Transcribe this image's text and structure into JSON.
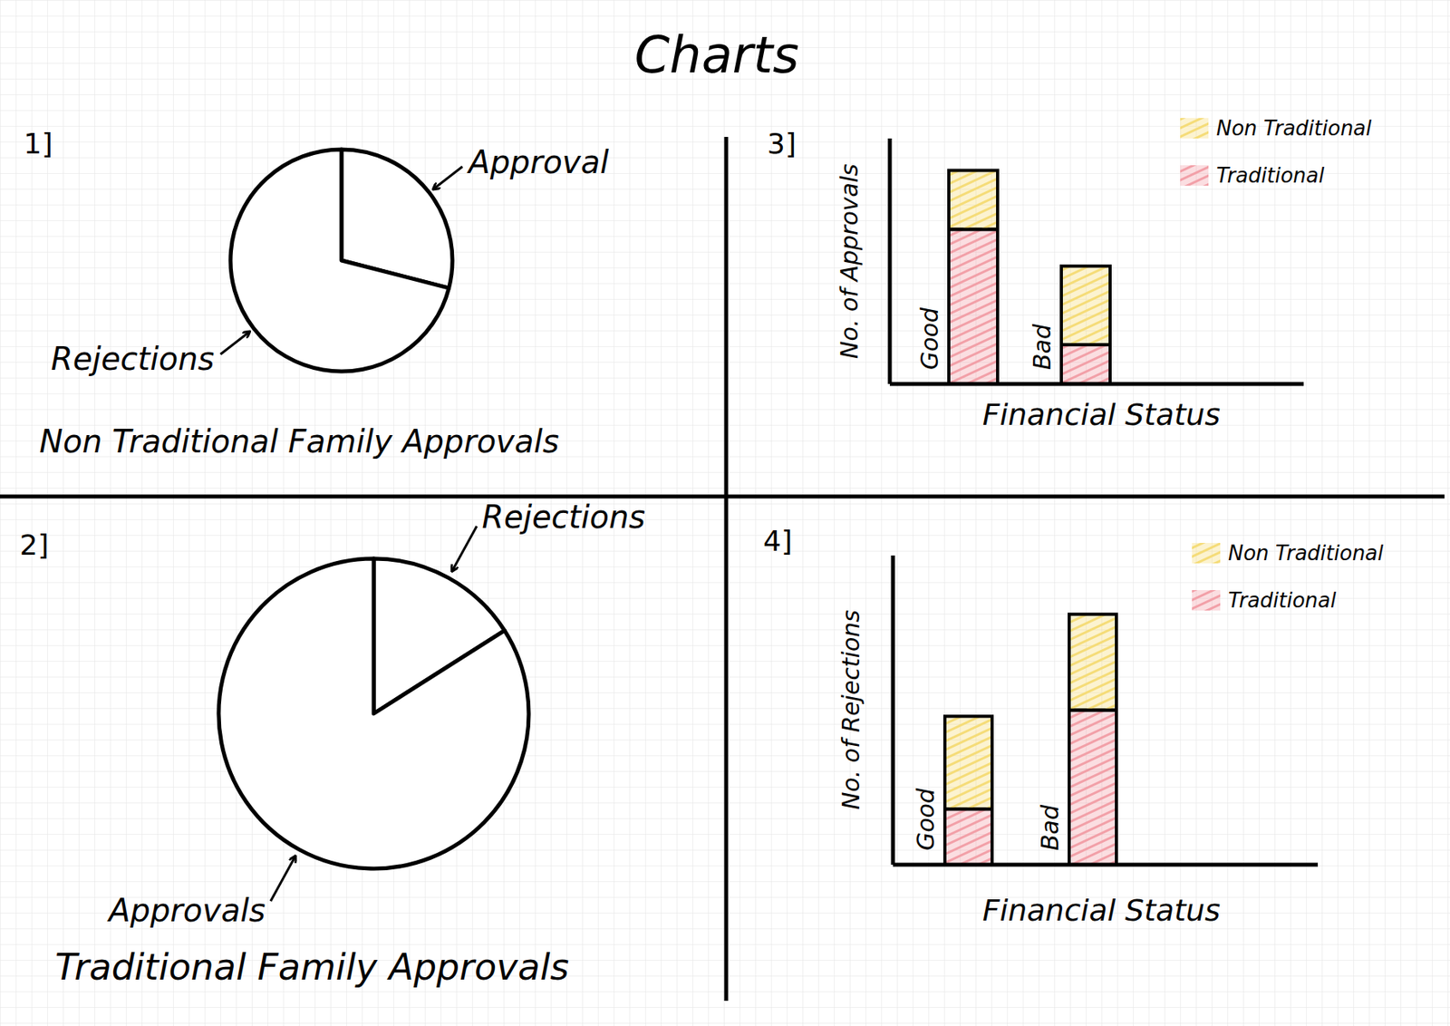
{
  "title": "Charts",
  "chart_data": [
    {
      "type": "pie",
      "title": "Non Traditional Family Approvals",
      "annotations": [
        "1]"
      ],
      "categories": [
        "Approval",
        "Rejections"
      ],
      "values": [
        29,
        71
      ],
      "colors": [
        "#ffffff",
        "#ffffff"
      ]
    },
    {
      "type": "pie",
      "title": "Traditional Family Approvals",
      "annotations": [
        "2]"
      ],
      "categories": [
        "Rejections",
        "Approvals"
      ],
      "values": [
        16,
        84
      ],
      "colors": [
        "#ffffff",
        "#ffffff"
      ]
    },
    {
      "type": "bar",
      "stacked": true,
      "annotations": [
        "3]"
      ],
      "ylabel": "No. of Approvals",
      "xlabel": "Financial Status",
      "categories": [
        "Good",
        "Bad"
      ],
      "series": [
        {
          "name": "Traditional",
          "color": "#f2a0a8",
          "values": [
            6.3,
            1.6
          ]
        },
        {
          "name": "Non Traditional",
          "color": "#f5dc78",
          "values": [
            2.4,
            3.2
          ]
        }
      ],
      "ylim": [
        0,
        10
      ],
      "tick_labels": false,
      "legend": "top-right"
    },
    {
      "type": "bar",
      "stacked": true,
      "annotations": [
        "4]"
      ],
      "ylabel": "No. of Rejections",
      "xlabel": "Financial Status",
      "categories": [
        "Good",
        "Bad"
      ],
      "series": [
        {
          "name": "Traditional",
          "color": "#f2a0a8",
          "values": [
            1.8,
            5.0
          ]
        },
        {
          "name": "Non Traditional",
          "color": "#f5dc78",
          "values": [
            3.0,
            3.1
          ]
        }
      ],
      "ylim": [
        0,
        10
      ],
      "tick_labels": false,
      "legend": "top-right"
    }
  ]
}
